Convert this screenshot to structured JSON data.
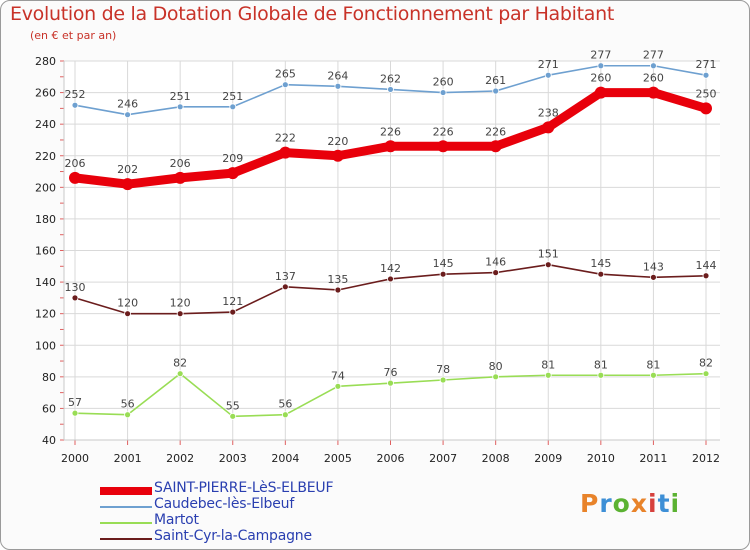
{
  "chart_data": {
    "type": "line",
    "title": "Evolution de la Dotation Globale de Fonctionnement par Habitant",
    "subtitle": "(en € et par an)",
    "categories": [
      "2000",
      "2001",
      "2002",
      "2003",
      "2004",
      "2005",
      "2006",
      "2007",
      "2008",
      "2009",
      "2010",
      "2011",
      "2012"
    ],
    "ylim": [
      40,
      280
    ],
    "yticks": [
      40,
      60,
      80,
      100,
      120,
      140,
      160,
      180,
      200,
      220,
      240,
      260,
      280
    ],
    "grid": true,
    "series": [
      {
        "name": "SAINT-PIERRE-LèS-ELBEUF",
        "color": "#e8000b",
        "values": [
          206,
          202,
          206,
          209,
          222,
          220,
          226,
          226,
          226,
          238,
          260,
          260,
          250
        ]
      },
      {
        "name": "Caudebec-lès-Elbeuf",
        "color": "#6ea0d0",
        "values": [
          252,
          246,
          251,
          251,
          265,
          264,
          262,
          260,
          261,
          271,
          277,
          277,
          271
        ]
      },
      {
        "name": "Martot",
        "color": "#99dd55",
        "values": [
          57,
          56,
          82,
          55,
          56,
          74,
          76,
          78,
          80,
          81,
          81,
          81,
          82
        ]
      },
      {
        "name": "Saint-Cyr-la-Campagne",
        "color": "#6b1d1d",
        "values": [
          130,
          120,
          120,
          121,
          137,
          135,
          142,
          145,
          146,
          151,
          145,
          143,
          144
        ]
      }
    ]
  },
  "logo": {
    "text": "Proxiti"
  }
}
